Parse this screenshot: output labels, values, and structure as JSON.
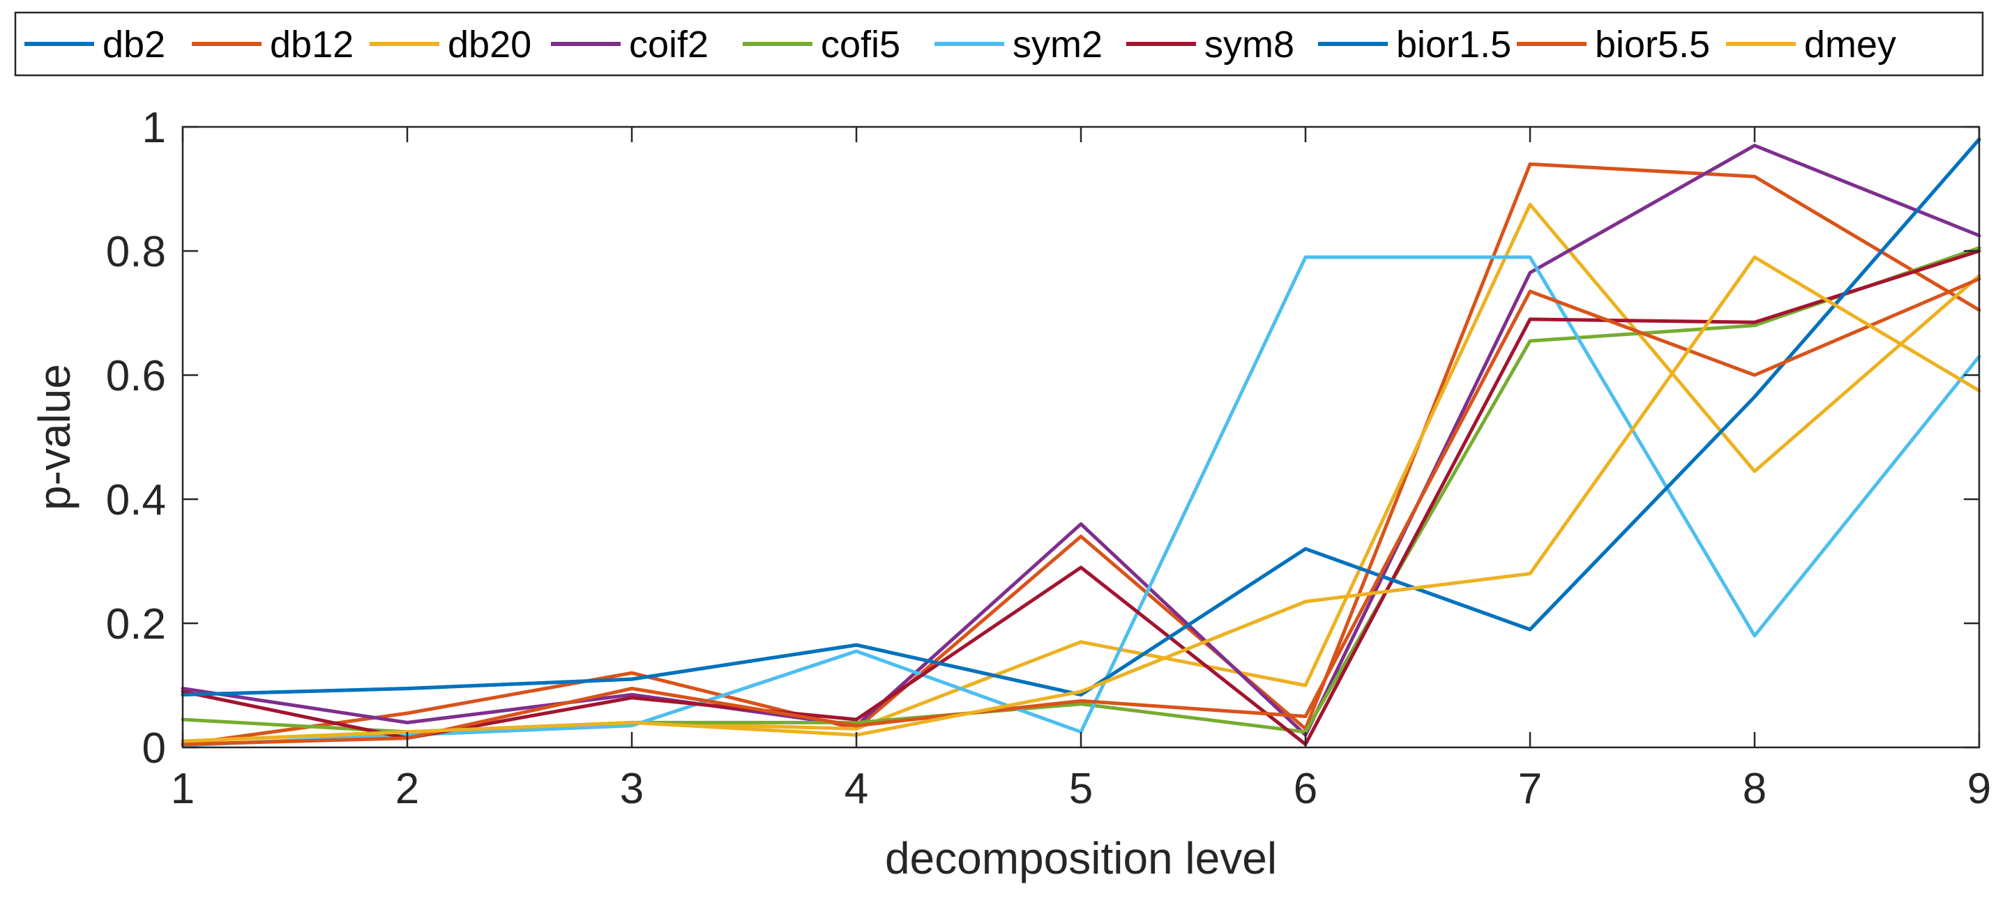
{
  "chart_data": {
    "type": "line",
    "title": "",
    "xlabel": "decomposition level",
    "ylabel": "p-value",
    "xlim": [
      1,
      9
    ],
    "ylim": [
      0,
      1
    ],
    "x": [
      1,
      2,
      3,
      4,
      5,
      6,
      7,
      8,
      9
    ],
    "xticks": [
      "1",
      "2",
      "3",
      "4",
      "5",
      "6",
      "7",
      "8",
      "9"
    ],
    "yticks": [
      "0",
      "0.2",
      "0.4",
      "0.6",
      "0.8",
      "1"
    ],
    "legend_position": "top",
    "grid": false,
    "series": [
      {
        "name": "db2",
        "color": "#0072BD",
        "values": [
          0.085,
          0.095,
          0.11,
          0.165,
          0.085,
          0.32,
          0.19,
          0.565,
          0.98
        ]
      },
      {
        "name": "db12",
        "color": "#D95319",
        "values": [
          0.005,
          0.055,
          0.12,
          0.03,
          0.34,
          0.03,
          0.94,
          0.92,
          0.705
        ]
      },
      {
        "name": "db20",
        "color": "#EDB120",
        "values": [
          0.01,
          0.025,
          0.04,
          0.03,
          0.17,
          0.1,
          0.875,
          0.445,
          0.76
        ]
      },
      {
        "name": "coif2",
        "color": "#7E2F8E",
        "values": [
          0.095,
          0.04,
          0.085,
          0.035,
          0.36,
          0.02,
          0.765,
          0.97,
          0.825
        ]
      },
      {
        "name": "cofi5",
        "color": "#77AC30",
        "values": [
          0.045,
          0.025,
          0.04,
          0.04,
          0.07,
          0.025,
          0.655,
          0.68,
          0.805
        ]
      },
      {
        "name": "sym2",
        "color": "#4DBEEE",
        "values": [
          0.003,
          0.02,
          0.035,
          0.155,
          0.025,
          0.79,
          0.79,
          0.18,
          0.63
        ]
      },
      {
        "name": "sym8",
        "color": "#A2142F",
        "values": [
          0.09,
          0.015,
          0.08,
          0.045,
          0.29,
          0.005,
          0.69,
          0.685,
          0.8
        ]
      },
      {
        "name": "bior1.5",
        "color": "#0072BD",
        "values": [
          0.085,
          0.095,
          0.11,
          0.165,
          0.085,
          0.32,
          0.19,
          0.565,
          0.98
        ]
      },
      {
        "name": "bior5.5",
        "color": "#D95319",
        "values": [
          0.005,
          0.015,
          0.095,
          0.035,
          0.075,
          0.05,
          0.735,
          0.6,
          0.755
        ]
      },
      {
        "name": "dmey",
        "color": "#EDB120",
        "values": [
          0.01,
          0.025,
          0.04,
          0.02,
          0.09,
          0.235,
          0.28,
          0.79,
          0.575
        ]
      }
    ]
  }
}
